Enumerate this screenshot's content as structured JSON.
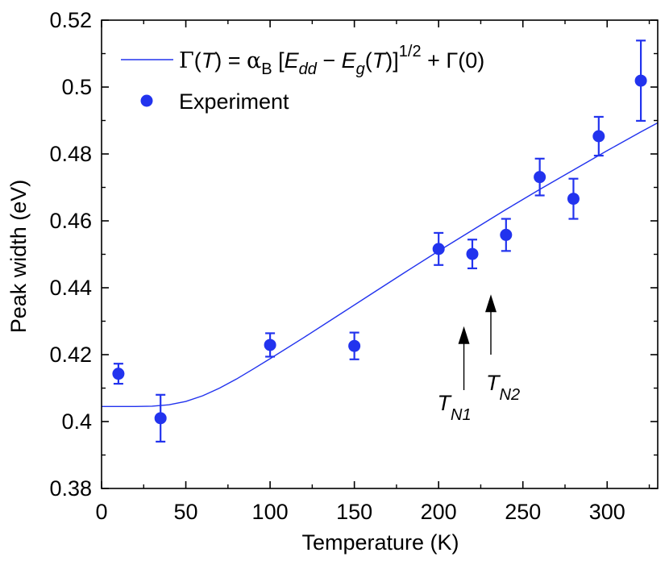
{
  "chart_data": {
    "type": "scatter",
    "xlabel": "Temperature (K)",
    "ylabel": "Peak width (eV)",
    "xlim": [
      0,
      330
    ],
    "ylim": [
      0.38,
      0.52
    ],
    "xticks": [
      0,
      50,
      100,
      150,
      200,
      250,
      300
    ],
    "xtick_labels": [
      "0",
      "50",
      "100",
      "150",
      "200",
      "250",
      "300"
    ],
    "yticks": [
      0.38,
      0.4,
      0.42,
      0.44,
      0.46,
      0.48,
      0.5,
      0.52
    ],
    "ytick_labels": [
      "0.38",
      "0.4",
      "0.42",
      "0.44",
      "0.46",
      "0.48",
      "0.5",
      "0.52"
    ],
    "legend_position": "top-left",
    "series": [
      {
        "name": "Γ(T) = αB [Edd − Eg(T)]1/2 + Γ(0)",
        "kind": "line",
        "color": "#2233ee",
        "x": [
          0,
          10,
          20,
          30,
          40,
          50,
          60,
          70,
          80,
          90,
          100,
          120,
          140,
          160,
          180,
          200,
          220,
          240,
          260,
          280,
          300,
          320,
          330
        ],
        "y": [
          0.4045,
          0.4045,
          0.4045,
          0.4046,
          0.405,
          0.406,
          0.4077,
          0.41,
          0.4127,
          0.4157,
          0.4188,
          0.4251,
          0.4316,
          0.4381,
          0.4446,
          0.451,
          0.4572,
          0.4634,
          0.4694,
          0.4752,
          0.481,
          0.4866,
          0.4893
        ]
      },
      {
        "name": "Experiment",
        "kind": "scatter",
        "color": "#2233ee",
        "x": [
          10,
          35,
          100,
          150,
          200,
          220,
          240,
          260,
          280,
          295,
          320
        ],
        "y": [
          0.4143,
          0.401,
          0.4229,
          0.4226,
          0.4516,
          0.4501,
          0.4558,
          0.4731,
          0.4666,
          0.4853,
          0.5019
        ],
        "err": [
          0.003,
          0.007,
          0.0035,
          0.004,
          0.0048,
          0.0043,
          0.0048,
          0.0055,
          0.006,
          0.0058,
          0.012
        ]
      }
    ],
    "legend": {
      "line_label": {
        "gamma": "Γ",
        "open1": "(",
        "T1": "T",
        "close1": ") = ",
        "alpha": "α",
        "alpha_sub": "B",
        "bracket": " [",
        "E1": "E",
        "E1_sub": "dd",
        "minus": " − ",
        "E2": "E",
        "E2_sub": "g",
        "open2": "(",
        "T2": "T",
        "close2": ")]",
        "exp": "1/2",
        "tail": " + Γ(0)"
      },
      "marker_label": "Experiment"
    },
    "annotations": [
      {
        "label": "T",
        "sub": "N1",
        "x": 215,
        "arrow_from_y": 0.4205,
        "arrow_to_y": 0.4285
      },
      {
        "label": "T",
        "sub": "N2",
        "x": 231,
        "arrow_from_y": 0.42,
        "arrow_to_y": 0.438
      }
    ]
  }
}
